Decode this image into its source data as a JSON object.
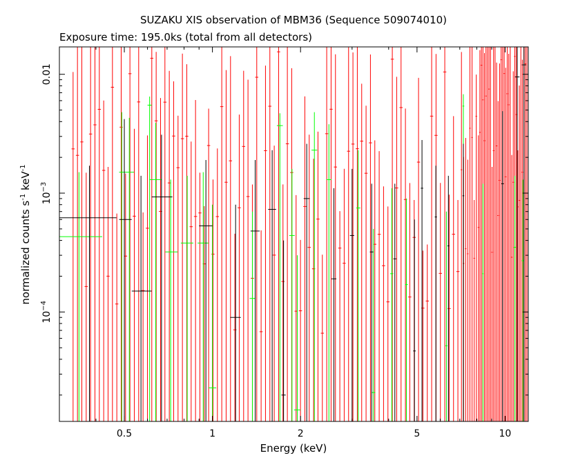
{
  "title": "SUZAKU XIS observation of MBM36 (Sequence 509074010)",
  "subtitle": "Exposure time: 195.0ks (total from all detectors)",
  "chart_data": {
    "type": "scatter",
    "title": "SUZAKU XIS observation of MBM36 (Sequence 509074010)",
    "subtitle": "Exposure time: 195.0ks (total from all detectors)",
    "xlabel": "Energy (keV)",
    "ylabel_parts": [
      "normalized counts s",
      "-1",
      " keV",
      "-1"
    ],
    "x_scale": "log",
    "y_scale": "log",
    "xlim": [
      0.3,
      12.0
    ],
    "ylim": [
      1.2e-05,
      0.017
    ],
    "x_ticks": [
      {
        "value": 0.5,
        "label": "0.5"
      },
      {
        "value": 1,
        "label": "1"
      },
      {
        "value": 2,
        "label": "2"
      },
      {
        "value": 5,
        "label": "5"
      },
      {
        "value": 10,
        "label": "10"
      }
    ],
    "y_ticks": [
      {
        "value": 0.01,
        "base": "0.01",
        "exp": ""
      },
      {
        "value": 0.001,
        "base": "10",
        "exp": "−3"
      },
      {
        "value": 0.0001,
        "base": "10",
        "exp": "−4"
      }
    ],
    "grid": false,
    "series": [
      {
        "color": "#000000",
        "points": [
          {
            "x": 0.38,
            "xlo": 0.3,
            "xhi": 0.47,
            "y": 0.00062,
            "ylo": 1.2e-05,
            "yhi": 0.0017
          },
          {
            "x": 0.5,
            "xlo": 0.48,
            "xhi": 0.53,
            "y": 0.0006,
            "ylo": 1.2e-05,
            "yhi": 0.0042
          },
          {
            "x": 0.57,
            "xlo": 0.53,
            "xhi": 0.62,
            "y": 0.00015,
            "ylo": 1.2e-05,
            "yhi": 0.0014
          },
          {
            "x": 0.67,
            "xlo": 0.62,
            "xhi": 0.73,
            "y": 0.00093,
            "ylo": 1.2e-05,
            "yhi": 0.0031
          },
          {
            "x": 0.95,
            "xlo": 0.9,
            "xhi": 1.0,
            "y": 0.00053,
            "ylo": 1.2e-05,
            "yhi": 0.0019
          },
          {
            "x": 1.2,
            "xlo": 1.15,
            "xhi": 1.25,
            "y": 9e-05,
            "ylo": 1.2e-05,
            "yhi": 0.0008
          },
          {
            "x": 1.4,
            "xlo": 1.35,
            "xhi": 1.45,
            "y": 0.00048,
            "ylo": 1.2e-05,
            "yhi": 0.0019
          },
          {
            "x": 1.6,
            "xlo": 1.55,
            "xhi": 1.65,
            "y": 0.00073,
            "ylo": 1.2e-05,
            "yhi": 0.0023
          },
          {
            "x": 1.75,
            "xlo": 1.72,
            "xhi": 1.78,
            "y": 2e-05,
            "ylo": 1.2e-05,
            "yhi": 0.0004
          },
          {
            "x": 2.1,
            "xlo": 2.05,
            "xhi": 2.15,
            "y": 0.0009,
            "ylo": 1.2e-05,
            "yhi": 0.0026
          },
          {
            "x": 2.6,
            "xlo": 2.55,
            "xhi": 2.65,
            "y": 0.00019,
            "ylo": 1.2e-05,
            "yhi": 0.0011
          },
          {
            "x": 3.0,
            "xlo": 2.95,
            "xhi": 3.05,
            "y": 0.00044,
            "ylo": 1.2e-05,
            "yhi": 0.0016
          },
          {
            "x": 3.5,
            "xlo": 3.45,
            "xhi": 3.55,
            "y": 0.00032,
            "ylo": 1.2e-05,
            "yhi": 0.0012
          },
          {
            "x": 4.2,
            "xlo": 4.15,
            "xhi": 4.25,
            "y": 0.00028,
            "ylo": 1.2e-05,
            "yhi": 0.0012
          },
          {
            "x": 4.9,
            "xlo": 4.85,
            "xhi": 4.95,
            "y": 4.7e-05,
            "ylo": 1.2e-05,
            "yhi": 0.0006
          },
          {
            "x": 5.2,
            "xlo": 5.15,
            "xhi": 5.25,
            "y": 0.0011,
            "ylo": 1.2e-05,
            "yhi": 0.0028
          },
          {
            "x": 5.8,
            "xlo": 5.75,
            "xhi": 5.85,
            "y": 0.00063,
            "ylo": 1.2e-05,
            "yhi": 0.0017
          },
          {
            "x": 6.4,
            "xlo": 6.35,
            "xhi": 6.45,
            "y": 0.00036,
            "ylo": 1.2e-05,
            "yhi": 0.0014
          },
          {
            "x": 7.2,
            "xlo": 7.15,
            "xhi": 7.25,
            "y": 0.00095,
            "ylo": 1.2e-05,
            "yhi": 0.0026
          },
          {
            "x": 9.8,
            "xlo": 9.7,
            "xhi": 9.9,
            "y": 0.0012,
            "ylo": 1.2e-05,
            "yhi": 0.0049
          },
          {
            "x": 11.0,
            "xlo": 10.8,
            "xhi": 11.2,
            "y": 0.0095,
            "ylo": 1.2e-05,
            "yhi": 0.017
          },
          {
            "x": 11.6,
            "xlo": 11.4,
            "xhi": 11.8,
            "y": 0.012,
            "ylo": 1.2e-05,
            "yhi": 0.017
          }
        ]
      },
      {
        "color": "#00ff00",
        "points": [
          {
            "x": 0.35,
            "xlo": 0.3,
            "xhi": 0.42,
            "y": 0.00043,
            "ylo": 1.2e-05,
            "yhi": 0.0015
          },
          {
            "x": 0.49,
            "xlo": 0.48,
            "xhi": 0.5,
            "y": 0.0015,
            "ylo": 1.2e-05,
            "yhi": 0.0048
          },
          {
            "x": 0.52,
            "xlo": 0.5,
            "xhi": 0.54,
            "y": 0.0015,
            "ylo": 1.2e-05,
            "yhi": 0.0043
          },
          {
            "x": 0.61,
            "xlo": 0.6,
            "xhi": 0.62,
            "y": 0.0055,
            "ylo": 1.2e-05,
            "yhi": 0.0065
          },
          {
            "x": 0.64,
            "xlo": 0.61,
            "xhi": 0.67,
            "y": 0.0013,
            "ylo": 1.2e-05,
            "yhi": 0.0039
          },
          {
            "x": 0.72,
            "xlo": 0.69,
            "xhi": 0.76,
            "y": 0.00032,
            "ylo": 1.2e-05,
            "yhi": 0.0013
          },
          {
            "x": 0.82,
            "xlo": 0.78,
            "xhi": 0.86,
            "y": 0.00038,
            "ylo": 1.2e-05,
            "yhi": 0.0014
          },
          {
            "x": 0.93,
            "xlo": 0.89,
            "xhi": 0.97,
            "y": 0.00038,
            "ylo": 1.2e-05,
            "yhi": 0.0015
          },
          {
            "x": 1.0,
            "xlo": 0.97,
            "xhi": 1.03,
            "y": 2.3e-05,
            "ylo": 1.2e-05,
            "yhi": 0.0008
          },
          {
            "x": 1.37,
            "xlo": 1.34,
            "xhi": 1.4,
            "y": 0.00013,
            "ylo": 1.2e-05,
            "yhi": 0.0007
          },
          {
            "x": 1.7,
            "xlo": 1.66,
            "xhi": 1.74,
            "y": 0.0037,
            "ylo": 1.2e-05,
            "yhi": 0.0047
          },
          {
            "x": 1.87,
            "xlo": 1.83,
            "xhi": 1.91,
            "y": 0.00044,
            "ylo": 1.2e-05,
            "yhi": 0.0016
          },
          {
            "x": 1.95,
            "xlo": 1.9,
            "xhi": 2.0,
            "y": 1.5e-05,
            "ylo": 1.2e-05,
            "yhi": 0.0003
          },
          {
            "x": 2.23,
            "xlo": 2.18,
            "xhi": 2.28,
            "y": 0.0023,
            "ylo": 1.2e-05,
            "yhi": 0.0048
          },
          {
            "x": 2.5,
            "xlo": 2.45,
            "xhi": 2.55,
            "y": 0.0013,
            "ylo": 1.2e-05,
            "yhi": 0.0038
          },
          {
            "x": 3.15,
            "xlo": 3.1,
            "xhi": 3.2,
            "y": 0.00075,
            "ylo": 1.2e-05,
            "yhi": 0.0023
          },
          {
            "x": 3.55,
            "xlo": 3.5,
            "xhi": 3.6,
            "y": 2.1e-05,
            "ylo": 1.2e-05,
            "yhi": 0.0005
          },
          {
            "x": 4.1,
            "xlo": 4.05,
            "xhi": 4.15,
            "y": 0.00021,
            "ylo": 1.2e-05,
            "yhi": 0.0011
          },
          {
            "x": 4.6,
            "xlo": 4.55,
            "xhi": 4.65,
            "y": 0.00017,
            "ylo": 1.2e-05,
            "yhi": 0.0009
          },
          {
            "x": 6.3,
            "xlo": 6.25,
            "xhi": 6.35,
            "y": 5.2e-05,
            "ylo": 1.2e-05,
            "yhi": 0.0007
          },
          {
            "x": 7.2,
            "xlo": 7.15,
            "xhi": 7.25,
            "y": 0.0054,
            "ylo": 1.2e-05,
            "yhi": 0.0068
          },
          {
            "x": 8.4,
            "xlo": 8.35,
            "xhi": 8.45,
            "y": 0.00021,
            "ylo": 1.2e-05,
            "yhi": 0.0012
          },
          {
            "x": 10.8,
            "xlo": 10.7,
            "xhi": 10.9,
            "y": 0.00035,
            "ylo": 1.2e-05,
            "yhi": 0.0014
          },
          {
            "x": 11.5,
            "xlo": 11.4,
            "xhi": 11.6,
            "y": 0.00027,
            "ylo": 1.2e-05,
            "yhi": 0.0013
          }
        ]
      },
      {
        "color": "#ff0000",
        "generated": true
      }
    ]
  }
}
